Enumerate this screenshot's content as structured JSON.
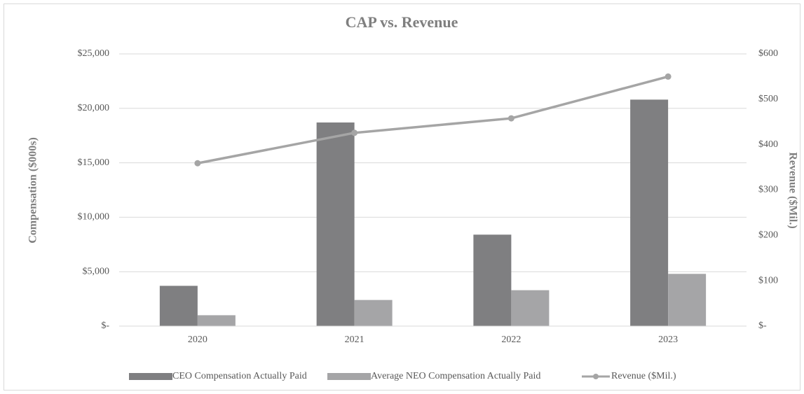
{
  "chart_data": {
    "type": "bar",
    "title": "CAP vs. Revenue",
    "categories": [
      "2020",
      "2021",
      "2022",
      "2023"
    ],
    "y_label": "Compensation ($000s)",
    "y2_label": "Revenue ($Mil.)",
    "series": [
      {
        "name": "CEO Compensation Actually Paid",
        "type": "bar",
        "color": "#7f7f81",
        "values": [
          3700,
          18700,
          8400,
          20800
        ]
      },
      {
        "name": "Average NEO Compensation Actually Paid",
        "type": "bar",
        "color": "#a5a5a7",
        "values": [
          1000,
          2400,
          3300,
          4800
        ]
      },
      {
        "name": "Revenue ($Mil.)",
        "type": "line",
        "axis": "y2",
        "color": "#a5a5a5",
        "values": [
          359,
          426,
          458,
          550
        ]
      }
    ],
    "ylim": [
      0,
      25000
    ],
    "yticks": [
      {
        "value": 0,
        "label": "$-"
      },
      {
        "value": 5000,
        "label": "$5,000"
      },
      {
        "value": 10000,
        "label": "$10,000"
      },
      {
        "value": 15000,
        "label": "$15,000"
      },
      {
        "value": 20000,
        "label": "$20,000"
      },
      {
        "value": 25000,
        "label": "$25,000"
      }
    ],
    "y2lim": [
      0,
      600
    ],
    "y2ticks": [
      {
        "value": 0,
        "label": "$-"
      },
      {
        "value": 100,
        "label": "$100"
      },
      {
        "value": 200,
        "label": "$200"
      },
      {
        "value": 300,
        "label": "$300"
      },
      {
        "value": 400,
        "label": "$400"
      },
      {
        "value": 500,
        "label": "$500"
      },
      {
        "value": 600,
        "label": "$600"
      }
    ],
    "grid": true,
    "legend": "bottom"
  }
}
